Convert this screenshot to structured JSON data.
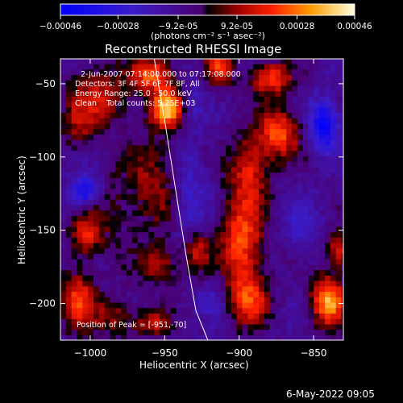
{
  "chart_data": {
    "type": "heatmap",
    "title": "Reconstructed RHESSI Image",
    "xlabel": "Heliocentric X (arcsec)",
    "ylabel": "Heliocentric Y (arcsec)",
    "xlim": [
      -1020,
      -830
    ],
    "ylim": [
      -225,
      -33
    ],
    "xticks": [
      -1000,
      -950,
      -900,
      -850
    ],
    "yticks": [
      -200,
      -150,
      -100,
      -50
    ],
    "colorbar": {
      "range": [
        -0.00046,
        0.00046
      ],
      "tick_values": [
        -0.00046,
        -0.00028,
        -9.2e-05,
        9.2e-05,
        0.00028,
        0.00046
      ],
      "tick_labels": [
        "-0.00046",
        "-0.00028",
        "-9.2e-05",
        "9.2e-05",
        "0.00028",
        "0.00046"
      ],
      "units": "(photons cm⁻² s⁻¹ asec⁻²)"
    },
    "annotations": [
      "2-Jun-2007 07:14:00.000 to 07:17:08.000",
      "Detectors: 3F 4F 5F 6F 7F 8F, All",
      "Energy Range: 25.0 - 50.0 keV",
      "Clean    Total counts: 5.25E+03",
      "Position of Peak = [-951,-70]"
    ],
    "limb_curve": {
      "x": [
        -957,
        -950,
        -943,
        -936,
        -929,
        -921
      ],
      "y": [
        -33,
        -75,
        -120,
        -165,
        -205,
        -225
      ]
    },
    "peak": {
      "x": -951,
      "y": -70
    },
    "blobs": [
      {
        "x": -950,
        "y": -68,
        "sx": 8,
        "sy": 9,
        "v": 0.00046
      },
      {
        "x": -960,
        "y": -45,
        "sx": 10,
        "sy": 8,
        "v": 0.00034
      },
      {
        "x": -995,
        "y": -60,
        "sx": 14,
        "sy": 14,
        "v": 0.00022
      },
      {
        "x": -1010,
        "y": -80,
        "sx": 8,
        "sy": 12,
        "v": 0.00015
      },
      {
        "x": -915,
        "y": -40,
        "sx": 6,
        "sy": 10,
        "v": 0.0003
      },
      {
        "x": -880,
        "y": -48,
        "sx": 10,
        "sy": 8,
        "v": 0.0003
      },
      {
        "x": -875,
        "y": -85,
        "sx": 10,
        "sy": 12,
        "v": 0.00032
      },
      {
        "x": -895,
        "y": -110,
        "sx": 9,
        "sy": 16,
        "v": 0.00026
      },
      {
        "x": -960,
        "y": -120,
        "sx": 13,
        "sy": 24,
        "v": 0.00018
      },
      {
        "x": -990,
        "y": -140,
        "sx": 10,
        "sy": 20,
        "v": 0.0001
      },
      {
        "x": -1005,
        "y": -155,
        "sx": 7,
        "sy": 10,
        "v": 0.00024
      },
      {
        "x": -1010,
        "y": -200,
        "sx": 8,
        "sy": 14,
        "v": 0.0003
      },
      {
        "x": -985,
        "y": -210,
        "sx": 10,
        "sy": 10,
        "v": 0.00018
      },
      {
        "x": -955,
        "y": -175,
        "sx": 10,
        "sy": 10,
        "v": 0.0002
      },
      {
        "x": -930,
        "y": -165,
        "sx": 6,
        "sy": 10,
        "v": 0.00025
      },
      {
        "x": -900,
        "y": -160,
        "sx": 10,
        "sy": 22,
        "v": 0.00033
      },
      {
        "x": -895,
        "y": -200,
        "sx": 10,
        "sy": 12,
        "v": 0.00026
      },
      {
        "x": -842,
        "y": -200,
        "sx": 8,
        "sy": 12,
        "v": 0.00042
      },
      {
        "x": -835,
        "y": -165,
        "sx": 6,
        "sy": 8,
        "v": 0.00028
      },
      {
        "x": -960,
        "y": -215,
        "sx": 8,
        "sy": 6,
        "v": 0.00022
      },
      {
        "x": -1005,
        "y": -125,
        "sx": 7,
        "sy": 7,
        "v": -0.00032
      },
      {
        "x": -845,
        "y": -80,
        "sx": 7,
        "sy": 12,
        "v": -0.00035
      },
      {
        "x": -935,
        "y": -130,
        "sx": 8,
        "sy": 25,
        "v": -0.00015
      },
      {
        "x": -935,
        "y": -65,
        "sx": 6,
        "sy": 10,
        "v": -0.00012
      },
      {
        "x": -858,
        "y": -150,
        "sx": 8,
        "sy": 14,
        "v": -0.00012
      },
      {
        "x": -920,
        "y": -200,
        "sx": 8,
        "sy": 8,
        "v": -0.0001
      }
    ]
  },
  "footer": {
    "timestamp": "6-May-2022 09:05"
  }
}
